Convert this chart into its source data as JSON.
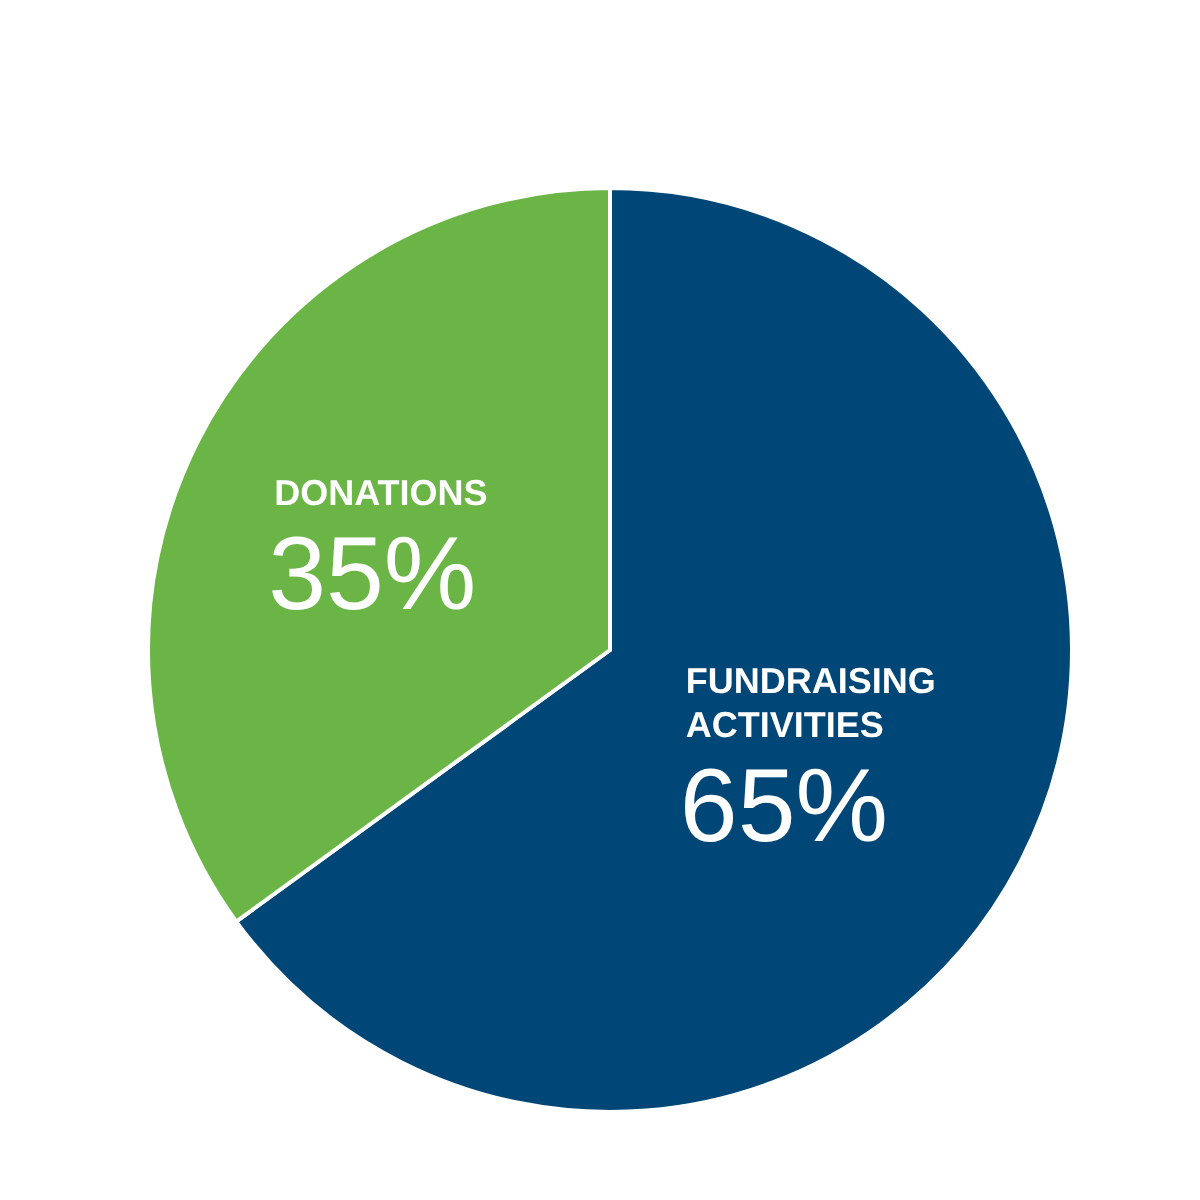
{
  "chart_data": {
    "type": "pie",
    "categories": [
      "FUNDRAISING ACTIVITIES",
      "DONATIONS"
    ],
    "values": [
      65,
      35
    ],
    "colors": [
      "#004677",
      "#6ab545"
    ],
    "value_labels": [
      "65%",
      "35%"
    ]
  }
}
